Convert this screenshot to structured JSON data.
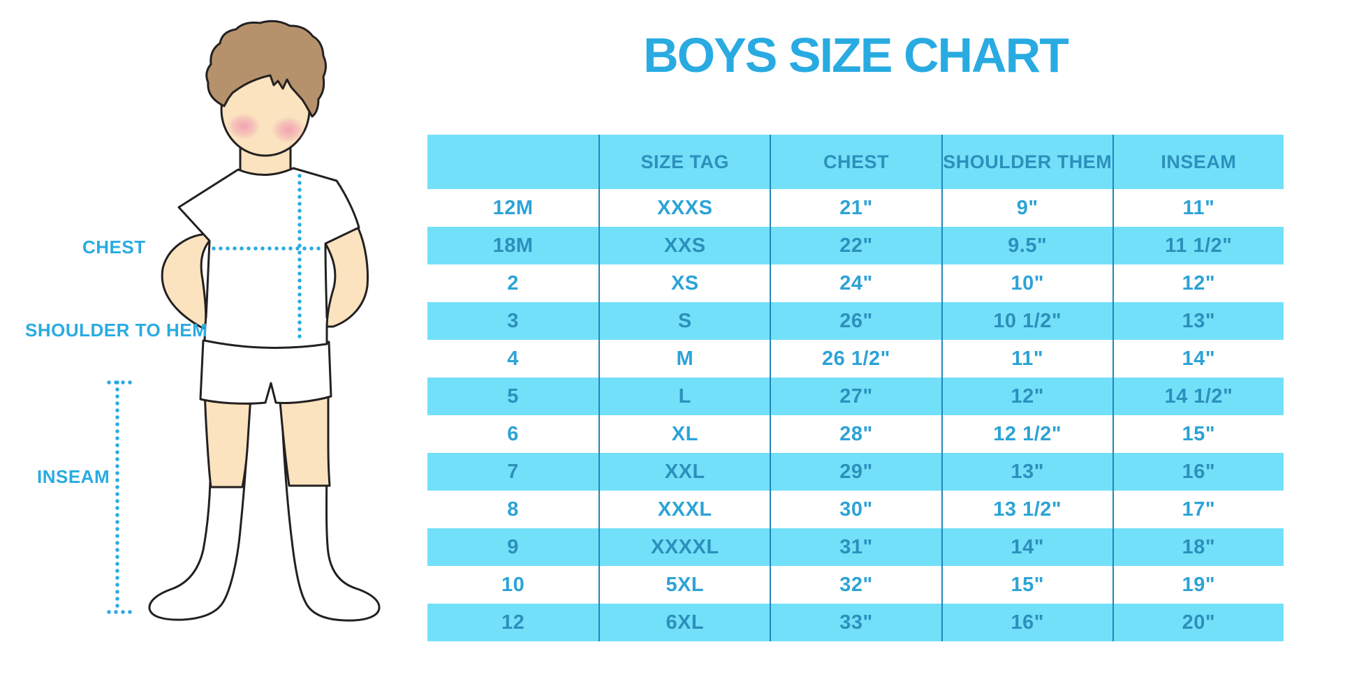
{
  "chart_data": {
    "type": "table",
    "title": "BOYS SIZE CHART",
    "columns": [
      "",
      "SIZE TAG",
      "CHEST",
      "SHOULDER THEM",
      "INSEAM"
    ],
    "rows": [
      [
        "12M",
        "XXXS",
        "21\"",
        "9\"",
        "11\""
      ],
      [
        "18M",
        "XXS",
        "22\"",
        "9.5\"",
        "11 1/2\""
      ],
      [
        "2",
        "XS",
        "24\"",
        "10\"",
        "12\""
      ],
      [
        "3",
        "S",
        "26\"",
        "10 1/2\"",
        "13\""
      ],
      [
        "4",
        "M",
        "26 1/2\"",
        "11\"",
        "14\""
      ],
      [
        "5",
        "L",
        "27\"",
        "12\"",
        "14 1/2\""
      ],
      [
        "6",
        "XL",
        "28\"",
        "12 1/2\"",
        "15\""
      ],
      [
        "7",
        "XXL",
        "29\"",
        "13\"",
        "16\""
      ],
      [
        "8",
        "XXXL",
        "30\"",
        "13 1/2\"",
        "17\""
      ],
      [
        "9",
        "XXXXL",
        "31\"",
        "14\"",
        "18\""
      ],
      [
        "10",
        "5XL",
        "32\"",
        "15\"",
        "19\""
      ],
      [
        "12",
        "6XL",
        "33\"",
        "16\"",
        "20\""
      ]
    ],
    "layout": {
      "alternating_row_fill": "light-blue/white",
      "grid": "vertical column dividers only"
    }
  },
  "diagram": {
    "chest_label": "CHEST",
    "shoulder_to_hem_label": "SHOULDER TO HEM",
    "inseam_label": "INSEAM",
    "figure": "boy-front-view-illustration"
  },
  "colors": {
    "accent": "#29ABE2",
    "row_blue": "#73E0F9",
    "divider": "#2186BC",
    "header_text": "#2B90BC",
    "cell_text_on_white": "#2CA3D6",
    "cell_text_on_blue": "#2B90BC",
    "outline": "#232021",
    "skin": "#FAE3BE",
    "hair": "#B6926C",
    "blush": "#F29CB2"
  }
}
